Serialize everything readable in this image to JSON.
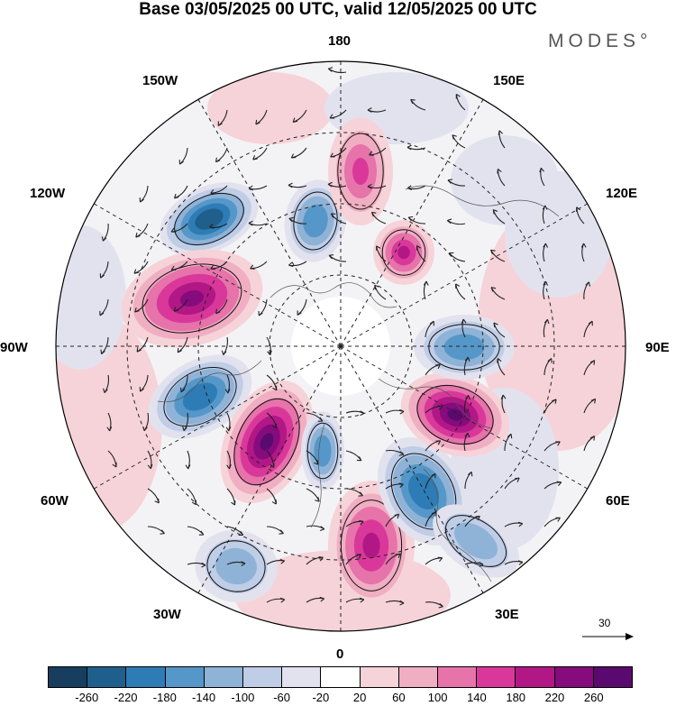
{
  "header": {
    "title": "Base 03/05/2025 00 UTC, valid 12/05/2025 00 UTC",
    "brand": "MODES°"
  },
  "map": {
    "projection": "north polar stereographic",
    "longitude_labels": [
      "180",
      "150E",
      "120E",
      "90E",
      "60E",
      "30E",
      "0",
      "30W",
      "60W",
      "90W",
      "120W",
      "150W"
    ],
    "reference_vector_label": "30",
    "anomaly_centers": [
      {
        "name": "negative-center-alaska",
        "sign": "negative",
        "level": -260
      },
      {
        "name": "positive-center-canada",
        "sign": "positive",
        "level": 220
      },
      {
        "name": "negative-center-hudson",
        "sign": "negative",
        "level": -220
      },
      {
        "name": "positive-center-greenland",
        "sign": "positive",
        "level": 260
      },
      {
        "name": "negative-center-iceland",
        "sign": "negative",
        "level": -180
      },
      {
        "name": "positive-center-scandinavia",
        "sign": "positive",
        "level": 180
      },
      {
        "name": "negative-center-west-siberia",
        "sign": "negative",
        "level": -220
      },
      {
        "name": "positive-center-central-siberia",
        "sign": "positive",
        "level": 260
      },
      {
        "name": "negative-center-east-siberia",
        "sign": "negative",
        "level": -180
      },
      {
        "name": "positive-center-chukotka",
        "sign": "positive",
        "level": 180
      },
      {
        "name": "negative-center-bering",
        "sign": "negative",
        "level": -180
      },
      {
        "name": "positive-center-pacific",
        "sign": "positive",
        "level": 140
      },
      {
        "name": "negative-center-atlantic",
        "sign": "negative",
        "level": -140
      },
      {
        "name": "negative-center-europe",
        "sign": "negative",
        "level": -140
      }
    ]
  },
  "colorbar": {
    "tick_labels": [
      "-260",
      "-220",
      "-180",
      "-140",
      "-100",
      "-60",
      "-20",
      "20",
      "60",
      "100",
      "140",
      "180",
      "220",
      "260"
    ],
    "colors": [
      "#173e5e",
      "#1f5f8c",
      "#2e7cb5",
      "#5597c8",
      "#8fb2d7",
      "#bfcde6",
      "#e2e2ef",
      "#ffffff",
      "#f6d3d8",
      "#f0aec3",
      "#e673aa",
      "#d9389a",
      "#b21786",
      "#860b7d",
      "#5a0a6e"
    ]
  }
}
